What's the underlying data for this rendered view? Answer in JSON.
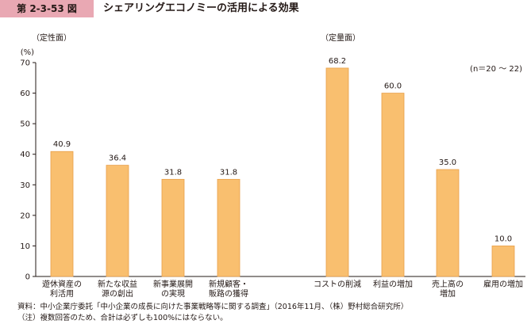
{
  "figure": {
    "number": "第 2-3-53 図",
    "title": "シェアリングエコノミーの活用による効果"
  },
  "chart_data": {
    "type": "bar",
    "unit_label": "(%)",
    "sample_note": "(n＝20 ～ 22)",
    "ylim": [
      0,
      70
    ],
    "yticks": [
      0,
      10,
      20,
      30,
      40,
      50,
      60,
      70
    ],
    "grid": false,
    "bar_color": "#f9bf6f",
    "bar_stroke": "#e8a04a",
    "groups": [
      {
        "label": "（定性面）",
        "categories": [
          [
            "遊休資産の",
            "利活用"
          ],
          [
            "新たな収益",
            "源の創出"
          ],
          [
            "新事業展開",
            "の実現"
          ],
          [
            "新規顧客・",
            "販路の獲得"
          ]
        ],
        "values": [
          40.9,
          36.4,
          31.8,
          31.8
        ],
        "value_labels": [
          "40.9",
          "36.4",
          "31.8",
          "31.8"
        ]
      },
      {
        "label": "（定量面）",
        "categories": [
          [
            "コストの削減"
          ],
          [
            "利益の増加"
          ],
          [
            "売上高の",
            "増加"
          ],
          [
            "雇用の増加"
          ]
        ],
        "values": [
          68.2,
          60.0,
          35.0,
          10.0
        ],
        "value_labels": [
          "68.2",
          "60.0",
          "35.0",
          "10.0"
        ]
      }
    ]
  },
  "notes": {
    "source": "資料：中小企業庁委託「中小企業の成長に向けた事業戦略等に関する調査」（2016年11月、（株）野村総合研究所）",
    "remark": "（注）複数回答のため、合計は必ずしも100%にはならない。"
  }
}
